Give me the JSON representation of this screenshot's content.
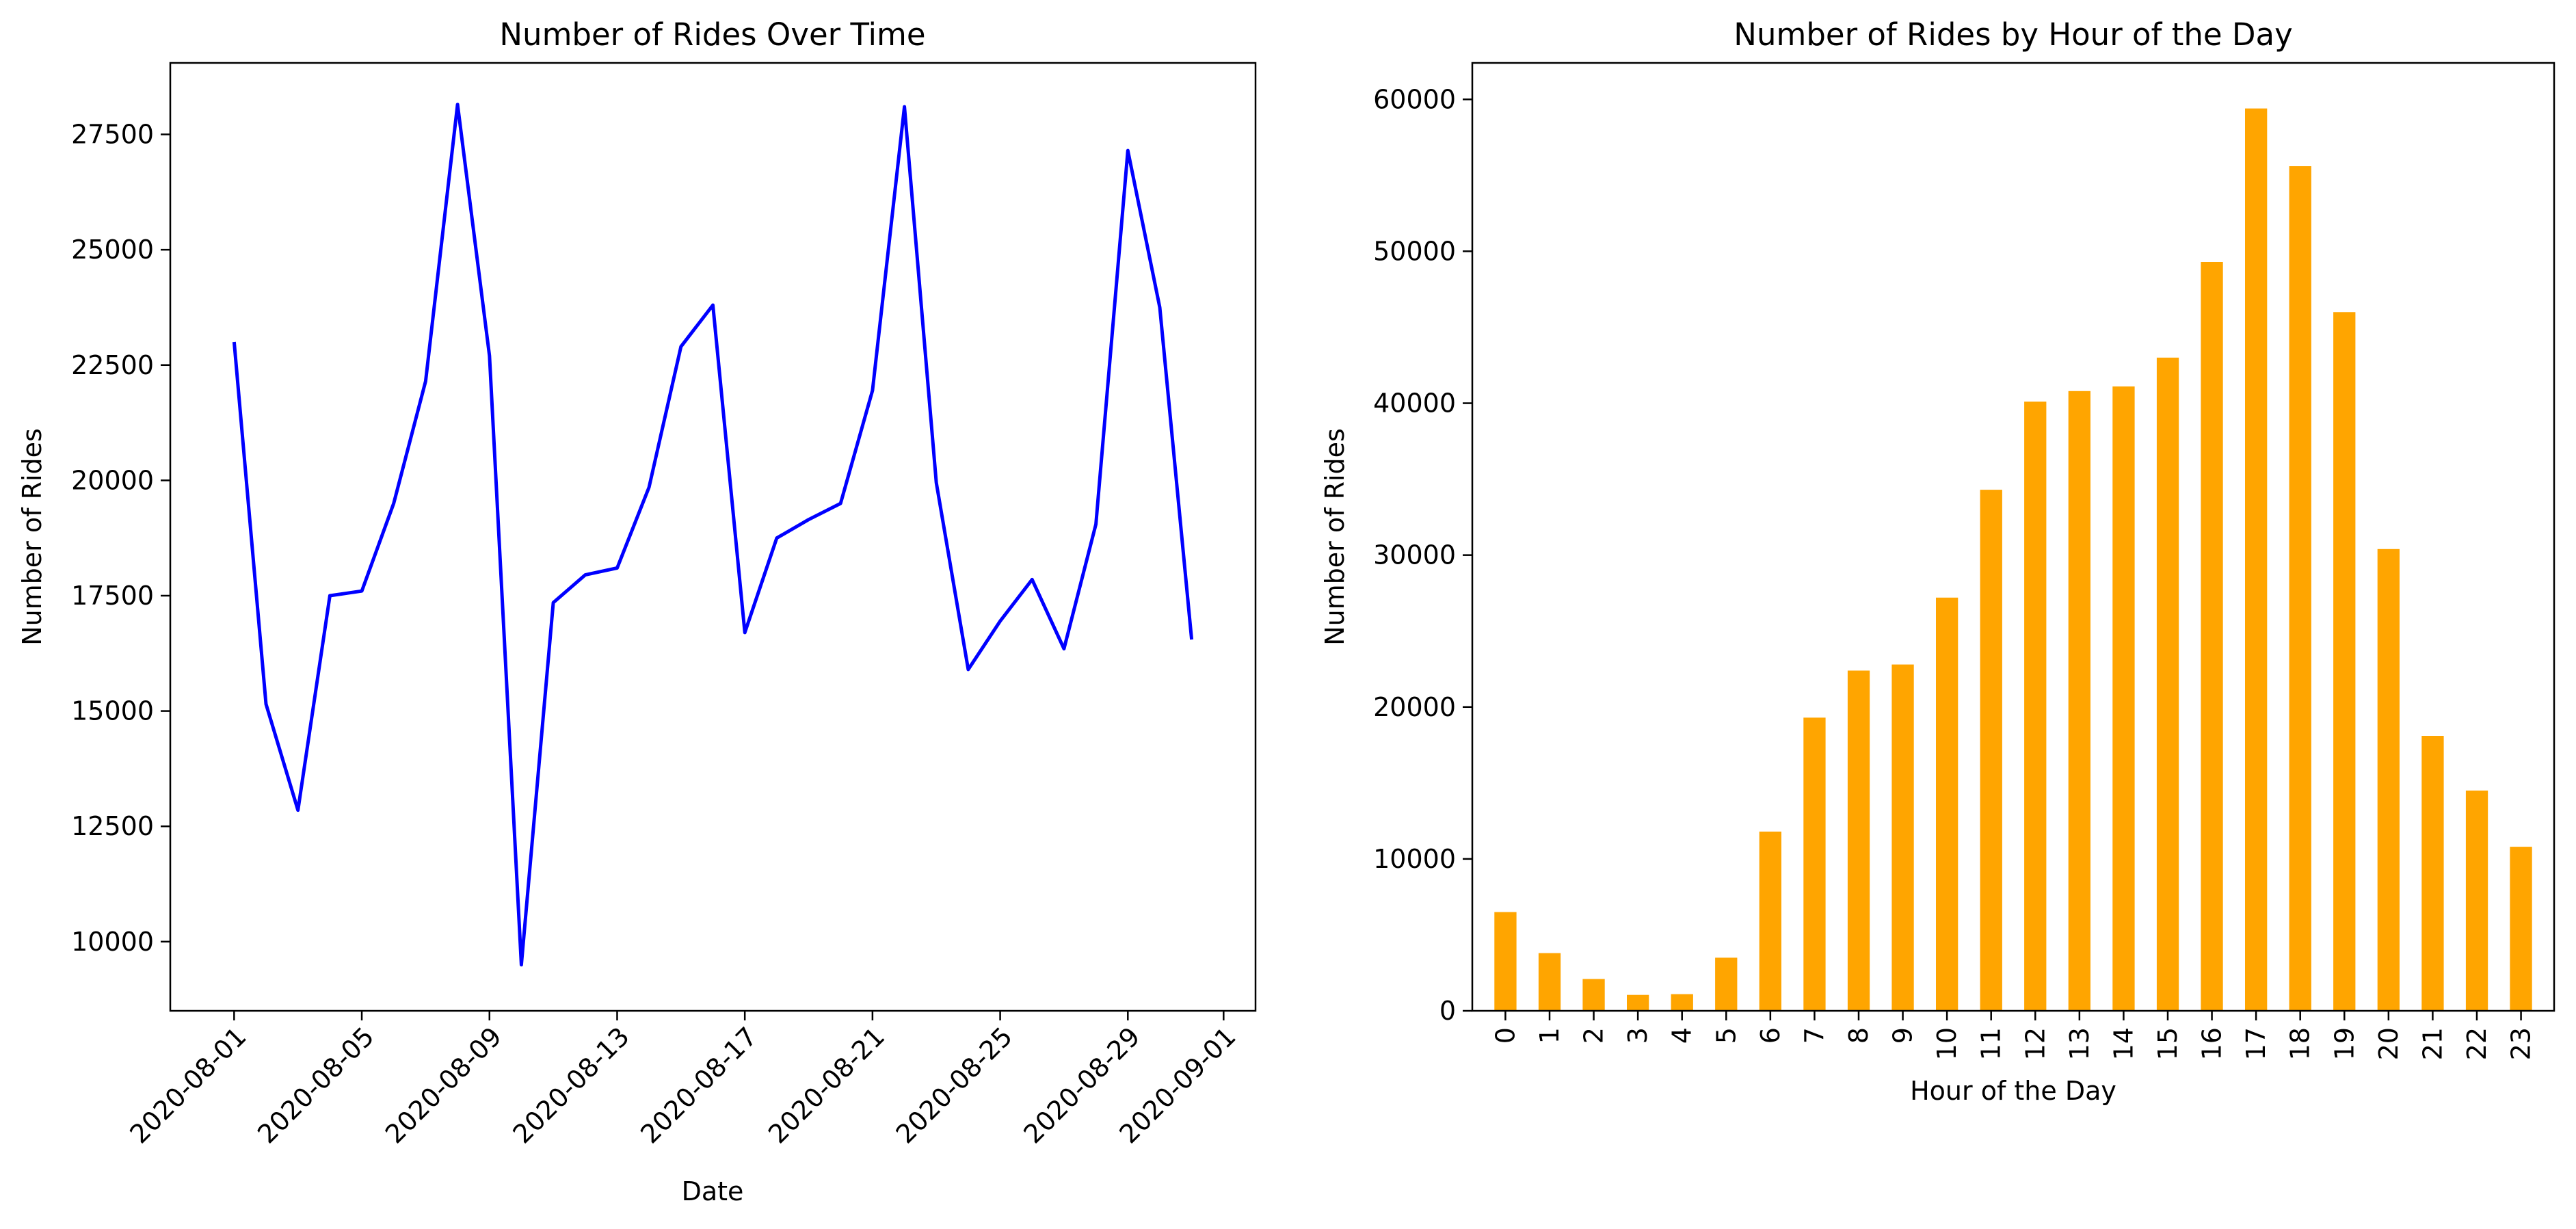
{
  "chart_data": [
    {
      "type": "line",
      "title": "Number of Rides Over Time",
      "xlabel": "Date",
      "ylabel": "Number of Rides",
      "color": "#0000ff",
      "x": [
        "2020-08-01",
        "2020-08-02",
        "2020-08-03",
        "2020-08-04",
        "2020-08-05",
        "2020-08-06",
        "2020-08-07",
        "2020-08-08",
        "2020-08-09",
        "2020-08-10",
        "2020-08-11",
        "2020-08-12",
        "2020-08-13",
        "2020-08-14",
        "2020-08-15",
        "2020-08-16",
        "2020-08-17",
        "2020-08-18",
        "2020-08-19",
        "2020-08-20",
        "2020-08-21",
        "2020-08-22",
        "2020-08-23",
        "2020-08-24",
        "2020-08-25",
        "2020-08-26",
        "2020-08-27",
        "2020-08-28",
        "2020-08-29",
        "2020-08-30",
        "2020-08-31"
      ],
      "series": [
        {
          "values": [
            23000,
            15150,
            12850,
            17500,
            17600,
            19500,
            22150,
            28150,
            22700,
            9500,
            17350,
            17950,
            18100,
            19850,
            22900,
            23800,
            16700,
            18750,
            19150,
            19500,
            21950,
            28100,
            19950,
            15900,
            16950,
            17850,
            16350,
            19050,
            27150,
            23750,
            16550
          ]
        }
      ],
      "xlim": [
        "2020-07-30",
        "2020-09-02"
      ],
      "ylim": [
        8500,
        29050
      ],
      "x_ticks": [
        "2020-08-01",
        "2020-08-05",
        "2020-08-09",
        "2020-08-13",
        "2020-08-17",
        "2020-08-21",
        "2020-08-25",
        "2020-08-29",
        "2020-09-01"
      ],
      "y_ticks": [
        10000,
        12500,
        15000,
        17500,
        20000,
        22500,
        25000,
        27500
      ],
      "grid": false,
      "x_tick_rotation": 45
    },
    {
      "type": "bar",
      "title": "Number of Rides by Hour of the Day",
      "xlabel": "Hour of the Day",
      "ylabel": "Number of Rides",
      "color": "#ffa500",
      "categories": [
        "0",
        "1",
        "2",
        "3",
        "4",
        "5",
        "6",
        "7",
        "8",
        "9",
        "10",
        "11",
        "12",
        "13",
        "14",
        "15",
        "16",
        "17",
        "18",
        "19",
        "20",
        "21",
        "22",
        "23"
      ],
      "values": [
        6500,
        3800,
        2100,
        1050,
        1100,
        3500,
        11800,
        19300,
        22400,
        22800,
        27200,
        34300,
        40100,
        40800,
        41100,
        43000,
        49300,
        59400,
        55600,
        46000,
        30400,
        18100,
        14500,
        10800
      ],
      "ylim": [
        0,
        62400
      ],
      "y_ticks": [
        0,
        10000,
        20000,
        30000,
        40000,
        50000,
        60000
      ],
      "grid": false,
      "x_tick_rotation": 90
    }
  ]
}
